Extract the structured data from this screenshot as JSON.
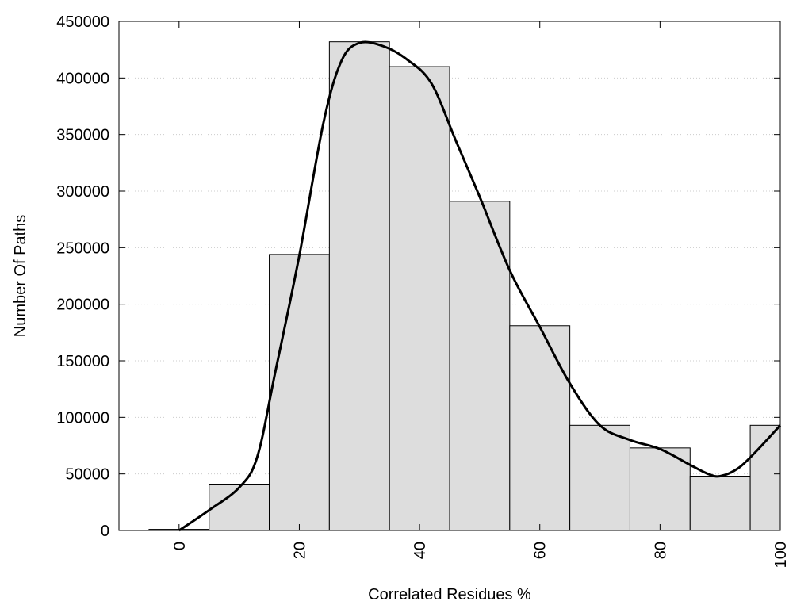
{
  "chart_data": {
    "type": "bar",
    "subtype": "histogram-with-curve",
    "title": "",
    "xlabel": "Correlated Residues %",
    "ylabel": "Number Of Paths",
    "xlim": [
      -10,
      100
    ],
    "ylim": [
      0,
      450000
    ],
    "x_ticks": [
      0,
      20,
      40,
      60,
      80,
      100
    ],
    "x_tick_labels": [
      "0",
      "20",
      "40",
      "60",
      "80",
      "100"
    ],
    "y_ticks": [
      0,
      50000,
      100000,
      150000,
      200000,
      250000,
      300000,
      350000,
      400000,
      450000
    ],
    "y_tick_labels": [
      "0",
      "50000",
      "100000",
      "150000",
      "200000",
      "250000",
      "300000",
      "350000",
      "400000",
      "450000"
    ],
    "grid": "horizontal dotted",
    "bars": [
      {
        "x": 0,
        "value": 1000
      },
      {
        "x": 10,
        "value": 41000
      },
      {
        "x": 20,
        "value": 244000
      },
      {
        "x": 30,
        "value": 432000
      },
      {
        "x": 40,
        "value": 410000
      },
      {
        "x": 50,
        "value": 291000
      },
      {
        "x": 60,
        "value": 181000
      },
      {
        "x": 70,
        "value": 93000
      },
      {
        "x": 80,
        "value": 73000
      },
      {
        "x": 90,
        "value": 48000
      },
      {
        "x": 100,
        "value": 93000
      }
    ],
    "bar_width": 10,
    "curve": {
      "x": [
        0,
        5,
        10,
        13,
        16,
        20,
        24,
        27,
        30,
        34,
        38,
        42,
        46,
        50,
        55,
        60,
        65,
        70,
        75,
        80,
        85,
        88,
        90,
        93,
        96,
        100
      ],
      "y": [
        0,
        18000,
        38000,
        65000,
        140000,
        243000,
        360000,
        415000,
        431000,
        428000,
        416000,
        395000,
        345000,
        295000,
        230000,
        180000,
        130000,
        93000,
        80000,
        72000,
        58000,
        50000,
        48000,
        55000,
        70000,
        93000
      ]
    },
    "colors": {
      "bar_fill": "#dddddd",
      "bar_stroke": "#000000",
      "curve": "#000000",
      "grid": "#cccccc"
    }
  }
}
